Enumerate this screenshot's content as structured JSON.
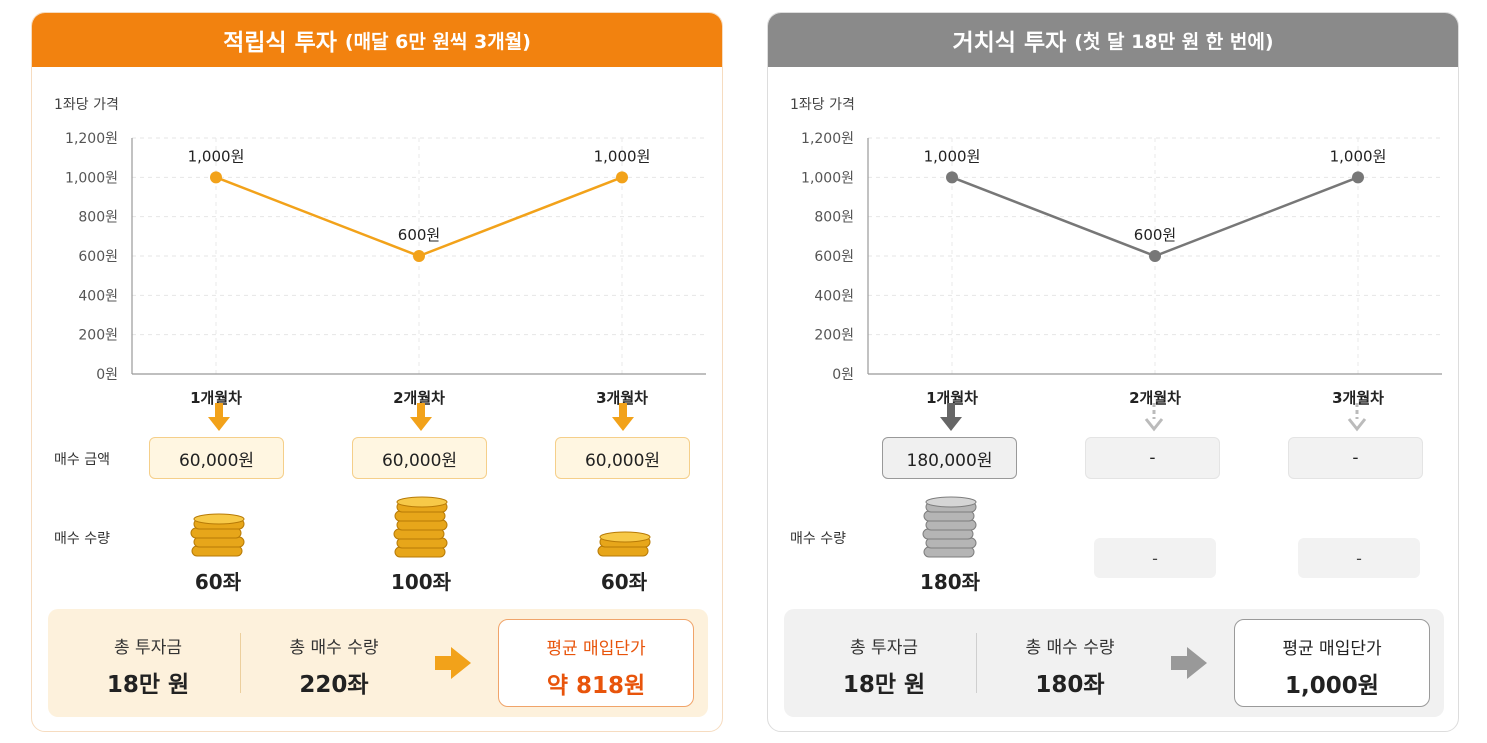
{
  "panels": [
    {
      "id": "left",
      "title": "적립식 투자",
      "subtitle": "(매달 6만 원씩 3개월)",
      "accent": "#f2820f",
      "row_labels": {
        "amount": "매수 금액",
        "quantity": "매수 수량"
      },
      "amounts": [
        "60,000원",
        "60,000원",
        "60,000원"
      ],
      "quantities": [
        "60좌",
        "100좌",
        "60좌"
      ],
      "summary": {
        "total_invest_label": "총 투자금",
        "total_invest_value": "18만 원",
        "total_qty_label": "총 매수 수량",
        "total_qty_value": "220좌",
        "avg_label": "평균 매입단가",
        "avg_value": "약 818원"
      }
    },
    {
      "id": "right",
      "title": "거치식 투자",
      "subtitle": "(첫 달 18만 원 한 번에)",
      "accent": "#8a8a8a",
      "row_labels": {
        "quantity": "매수 수량"
      },
      "amounts": [
        "180,000원",
        "-",
        "-"
      ],
      "quantities": [
        "180좌",
        "-",
        "-"
      ],
      "summary": {
        "total_invest_label": "총 투자금",
        "total_invest_value": "18만 원",
        "total_qty_label": "총 매수 수량",
        "total_qty_value": "180좌",
        "avg_label": "평균 매입단가",
        "avg_value": "1,000원"
      }
    }
  ],
  "chart_data": [
    {
      "type": "line",
      "ylabel": "1좌당 가격",
      "categories": [
        "1개월차",
        "2개월차",
        "3개월차"
      ],
      "values": [
        1000,
        600,
        1000
      ],
      "data_labels": [
        "1,000원",
        "600원",
        "1,000원"
      ],
      "yticks": [
        "0원",
        "200원",
        "400원",
        "600원",
        "800원",
        "1,000원",
        "1,200원"
      ],
      "ylim": [
        0,
        1200
      ],
      "color": "#f2a21a",
      "grid": true
    },
    {
      "type": "line",
      "ylabel": "1좌당 가격",
      "categories": [
        "1개월차",
        "2개월차",
        "3개월차"
      ],
      "values": [
        1000,
        600,
        1000
      ],
      "data_labels": [
        "1,000원",
        "600원",
        "1,000원"
      ],
      "yticks": [
        "0원",
        "200원",
        "400원",
        "600원",
        "800원",
        "1,000원",
        "1,200원"
      ],
      "ylim": [
        0,
        1200
      ],
      "color": "#777777",
      "grid": true
    }
  ]
}
